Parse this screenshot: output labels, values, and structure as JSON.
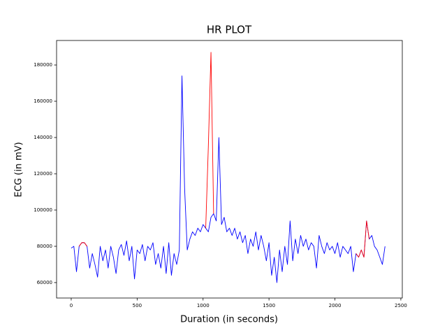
{
  "chart_data": {
    "type": "line",
    "title": "HR PLOT",
    "x_label": "Duration (in seconds)",
    "y_label": "ECG (in mV)",
    "x": [
      0,
      20,
      40,
      60,
      80,
      100,
      120,
      140,
      160,
      180,
      200,
      220,
      240,
      260,
      280,
      300,
      320,
      340,
      360,
      380,
      400,
      420,
      440,
      460,
      480,
      500,
      520,
      540,
      560,
      580,
      600,
      620,
      640,
      660,
      680,
      700,
      720,
      740,
      760,
      780,
      800,
      820,
      840,
      860,
      880,
      900,
      920,
      940,
      960,
      980,
      1000,
      1020,
      1040,
      1060,
      1080,
      1100,
      1120,
      1140,
      1160,
      1180,
      1200,
      1220,
      1240,
      1260,
      1280,
      1300,
      1320,
      1340,
      1360,
      1380,
      1400,
      1420,
      1440,
      1460,
      1480,
      1500,
      1520,
      1540,
      1560,
      1580,
      1600,
      1620,
      1640,
      1660,
      1680,
      1700,
      1720,
      1740,
      1760,
      1780,
      1800,
      1820,
      1840,
      1860,
      1880,
      1900,
      1920,
      1940,
      1960,
      1980,
      2000,
      2020,
      2040,
      2060,
      2080,
      2100,
      2120,
      2140,
      2160,
      2180,
      2200,
      2220,
      2240,
      2260,
      2280,
      2300,
      2320,
      2340,
      2360,
      2380
    ],
    "series": [
      {
        "color": "#0000ff",
        "values": [
          79000,
          80000,
          66000,
          80000,
          82000,
          82000,
          80000,
          68000,
          76000,
          70000,
          63000,
          80000,
          72000,
          78000,
          68000,
          80000,
          74000,
          65000,
          78000,
          81000,
          75000,
          83000,
          72000,
          80000,
          62000,
          78000,
          76000,
          81000,
          72000,
          80000,
          78000,
          82000,
          70000,
          76000,
          68000,
          80000,
          65000,
          82000,
          64000,
          76000,
          70000,
          78000,
          174000,
          112000,
          78000,
          84000,
          88000,
          86000,
          90000,
          88000,
          92000,
          90000,
          88000,
          96000,
          98000,
          94000,
          140000,
          92000,
          96000,
          88000,
          90000,
          86000,
          90000,
          84000,
          88000,
          82000,
          86000,
          76000,
          84000,
          80000,
          88000,
          78000,
          86000,
          80000,
          72000,
          82000,
          64000,
          74000,
          60000,
          78000,
          66000,
          80000,
          70000,
          94000,
          72000,
          84000,
          76000,
          86000,
          80000,
          84000,
          78000,
          82000,
          80000,
          68000,
          86000,
          80000,
          76000,
          82000,
          78000,
          80000,
          76000,
          82000,
          74000,
          80000,
          78000,
          76000,
          80000,
          66000,
          76000,
          74000,
          78000,
          74000,
          94000,
          84000,
          86000,
          80000,
          78000,
          74000,
          70000,
          80000
        ]
      },
      {
        "color": "#ff0000",
        "values": [
          null,
          null,
          null,
          80000,
          82000,
          82000,
          80000,
          null,
          null,
          null,
          null,
          null,
          null,
          null,
          null,
          null,
          null,
          null,
          null,
          null,
          null,
          null,
          null,
          null,
          null,
          null,
          null,
          null,
          null,
          null,
          null,
          null,
          null,
          null,
          null,
          null,
          null,
          null,
          null,
          null,
          null,
          null,
          null,
          null,
          null,
          null,
          null,
          null,
          null,
          null,
          null,
          90000,
          135000,
          187000,
          98000,
          null,
          null,
          null,
          null,
          null,
          null,
          null,
          null,
          null,
          null,
          null,
          null,
          null,
          null,
          null,
          null,
          null,
          null,
          null,
          null,
          null,
          null,
          null,
          null,
          null,
          null,
          null,
          null,
          null,
          null,
          null,
          null,
          null,
          null,
          null,
          null,
          null,
          null,
          null,
          null,
          null,
          null,
          null,
          null,
          null,
          null,
          null,
          null,
          null,
          null,
          null,
          null,
          null,
          76000,
          74000,
          78000,
          74000,
          94000,
          84000,
          null,
          null,
          null,
          null,
          null,
          null
        ]
      }
    ],
    "xlim": [
      -111,
      2511
    ],
    "ylim": [
      51500,
      193500
    ],
    "xticks": [
      0,
      500,
      1000,
      1500,
      2000,
      2500
    ],
    "yticks": [
      60000,
      80000,
      100000,
      120000,
      140000,
      160000,
      180000
    ]
  }
}
